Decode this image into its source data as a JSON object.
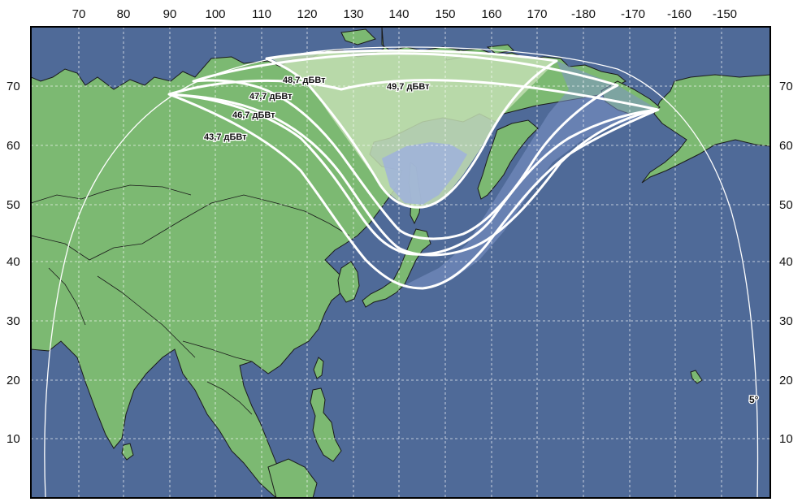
{
  "map": {
    "longitude_labels": [
      "70",
      "80",
      "90",
      "100",
      "110",
      "120",
      "130",
      "140",
      "150",
      "160",
      "170",
      "-180",
      "-170",
      "-160",
      "-150"
    ],
    "latitude_labels": [
      "70",
      "60",
      "50",
      "40",
      "30",
      "20",
      "10"
    ],
    "contours": [
      {
        "label": "49,7 дБВт"
      },
      {
        "label": "48,7 дБВт"
      },
      {
        "label": "47,7 дБВт"
      },
      {
        "label": "46,7 дБВт"
      },
      {
        "label": "43,7 дБВт"
      }
    ],
    "elevation_label": "5°",
    "colors": {
      "ocean": "#4f6a98",
      "land": "#7cb972",
      "beam_core_land": "#c3deb3",
      "beam_core_ocean": "#9fb2dc",
      "beam_outer_ocean": "#7d93c8",
      "contour_line": "#ffffff",
      "coastline": "#1a1a1a"
    }
  }
}
